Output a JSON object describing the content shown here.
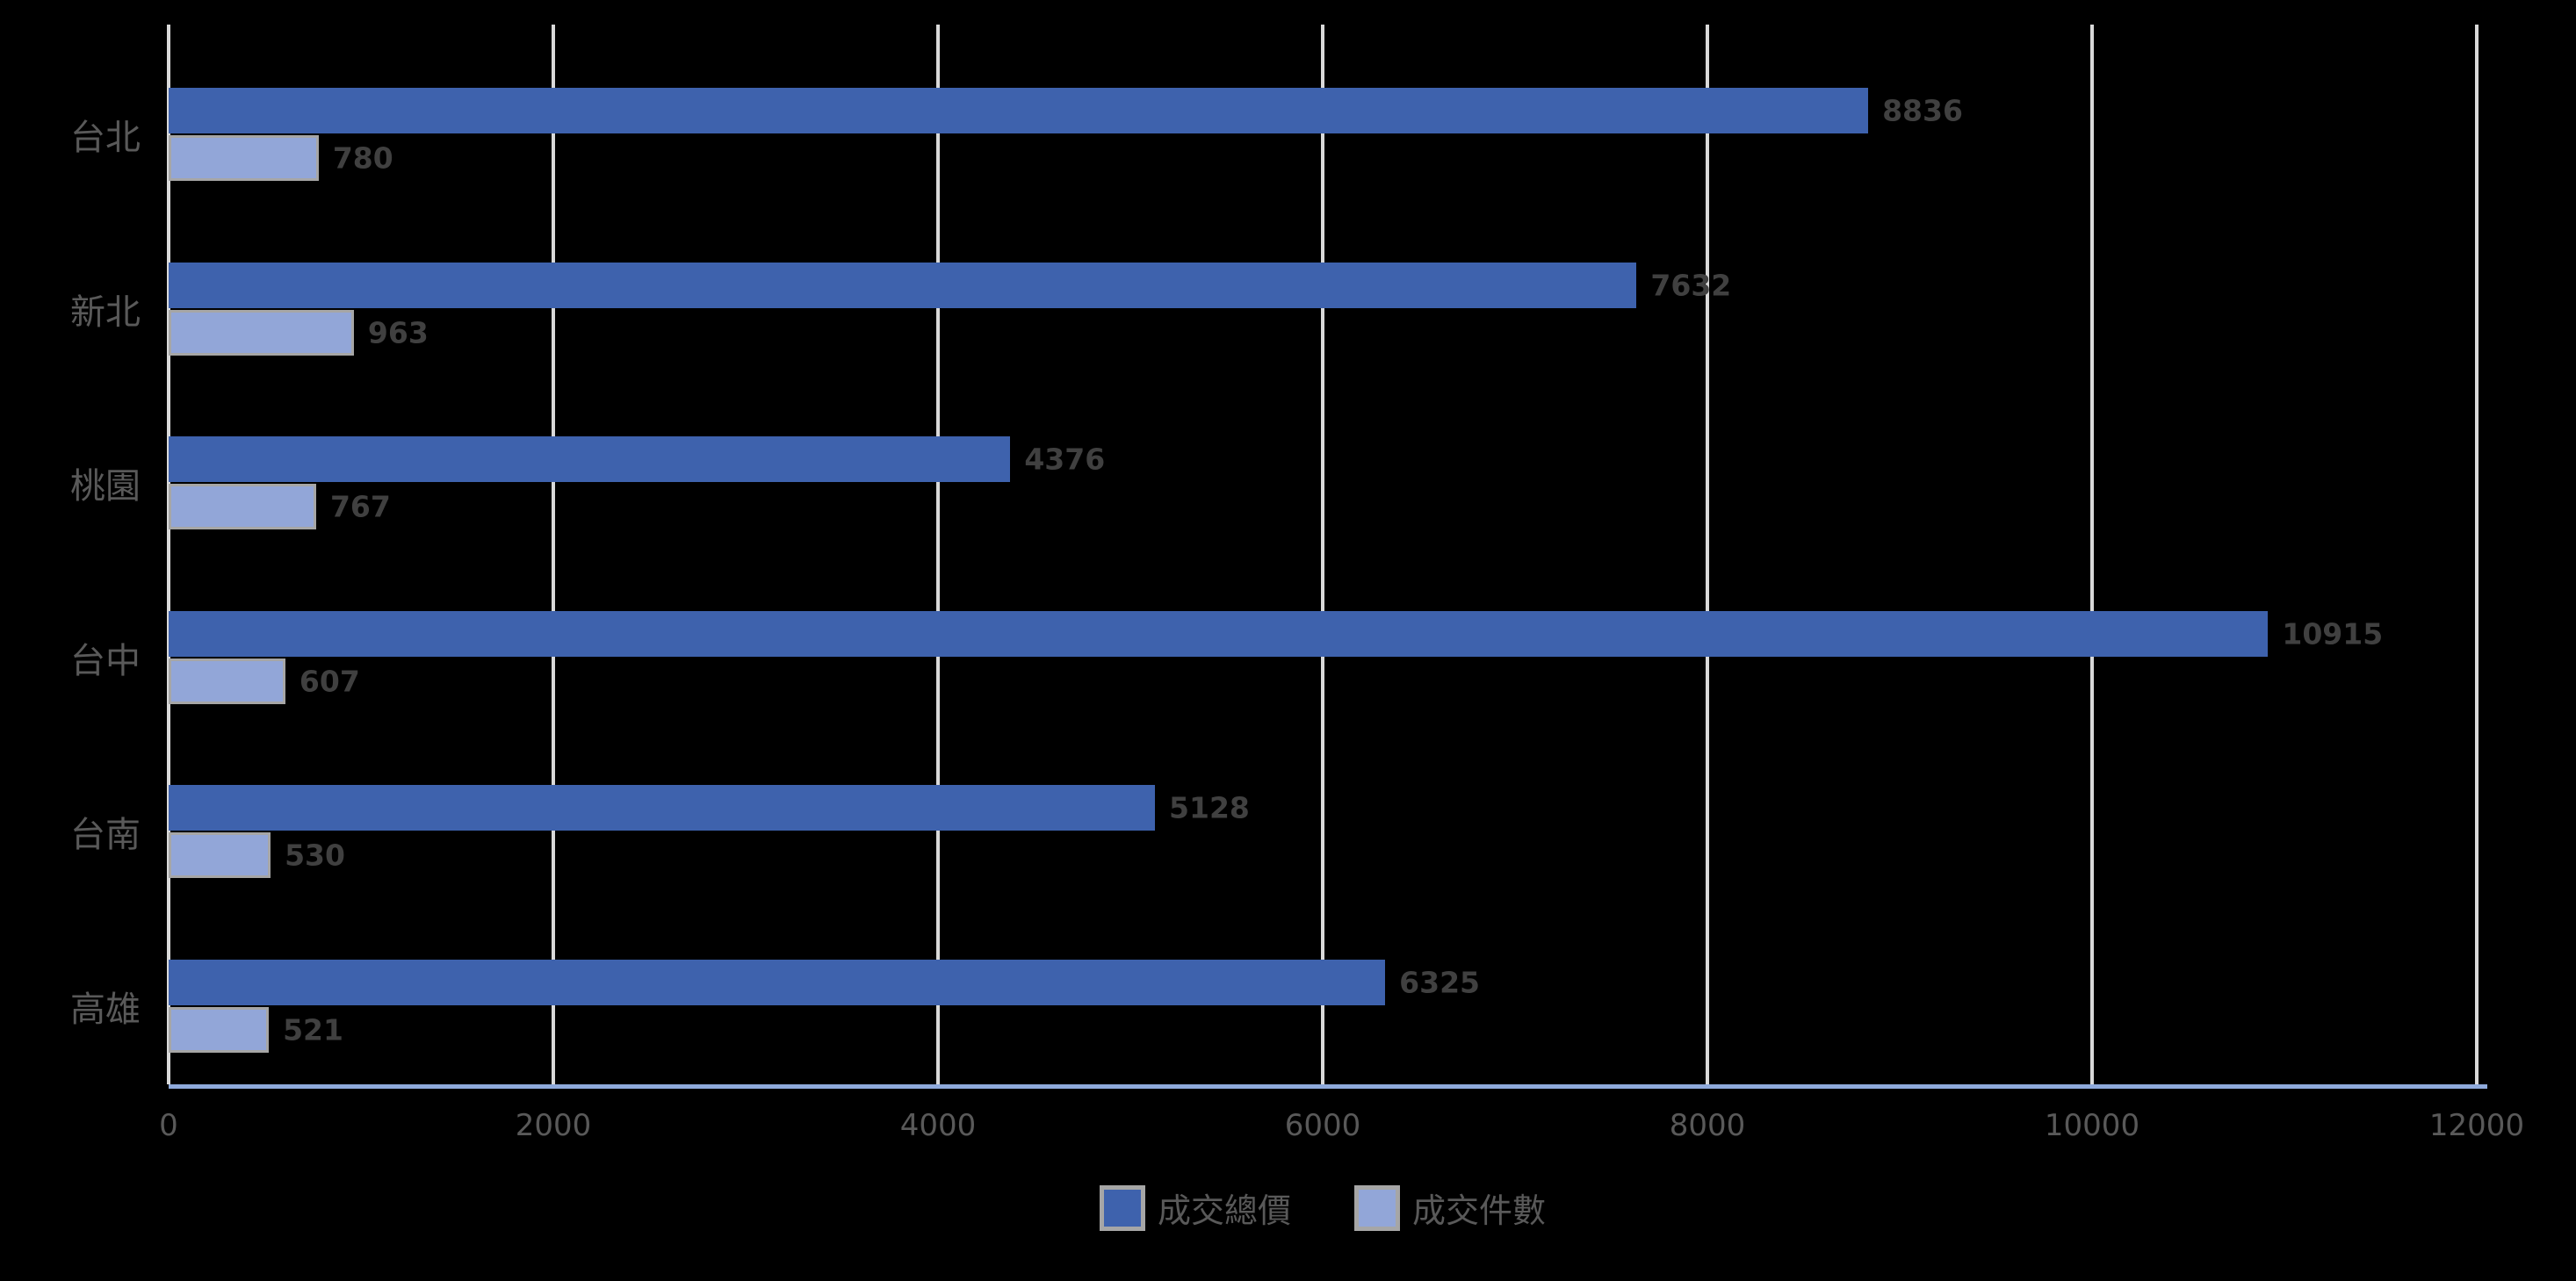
{
  "chart_data": {
    "type": "bar",
    "orientation": "horizontal",
    "title": "",
    "xlabel": "",
    "ylabel": "",
    "categories": [
      "台北",
      "新北",
      "桃園",
      "台中",
      "台南",
      "高雄"
    ],
    "series": [
      {
        "name": "成交總價",
        "color": "#3e62ad",
        "values": [
          8836,
          7632,
          4376,
          10915,
          5128,
          6325
        ]
      },
      {
        "name": "成交件數",
        "color": "#92a6d8",
        "values": [
          780,
          963,
          767,
          607,
          530,
          521
        ]
      }
    ],
    "xlim": [
      0,
      12000
    ],
    "x_ticks": [
      0,
      2000,
      4000,
      6000,
      8000,
      10000,
      12000
    ],
    "grid": "vertical",
    "gridline_color": "#d9d9d9",
    "axis_line_color": "#8faadc",
    "data_labels": true,
    "data_label_color": "#404040",
    "tick_label_color": "#595959",
    "legend_position": "bottom",
    "background": "#000000"
  }
}
